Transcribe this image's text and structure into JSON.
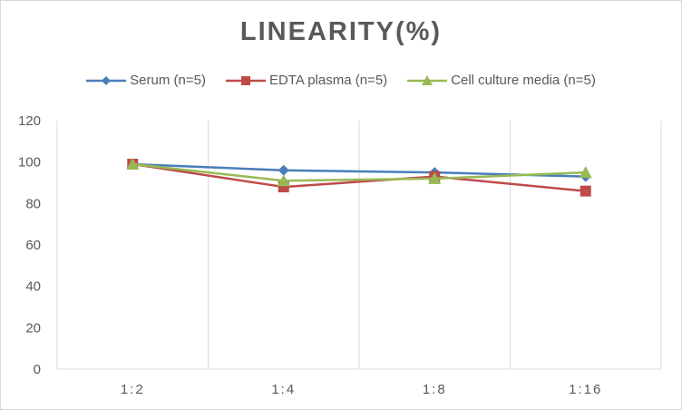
{
  "chart_data": {
    "type": "line",
    "title": "LINEARITY(%)",
    "categories": [
      "1:2",
      "1:4",
      "1:8",
      "1:16"
    ],
    "xlabel": "",
    "ylabel": "",
    "ylim": [
      0,
      120
    ],
    "yticks": [
      "0",
      "20",
      "40",
      "60",
      "80",
      "100",
      "120"
    ],
    "grid": "vertical",
    "legend": "top",
    "series": [
      {
        "name": "Serum (n=5)",
        "values": [
          99,
          96,
          95,
          93
        ],
        "color": "#4a7ebb",
        "marker": "diamond"
      },
      {
        "name": "EDTA plasma (n=5)",
        "values": [
          99,
          88,
          93,
          86
        ],
        "color": "#be4b48",
        "marker": "square"
      },
      {
        "name": "Cell culture media (n=5)",
        "values": [
          99,
          91,
          92,
          95
        ],
        "color": "#98b954",
        "marker": "triangle"
      }
    ]
  }
}
